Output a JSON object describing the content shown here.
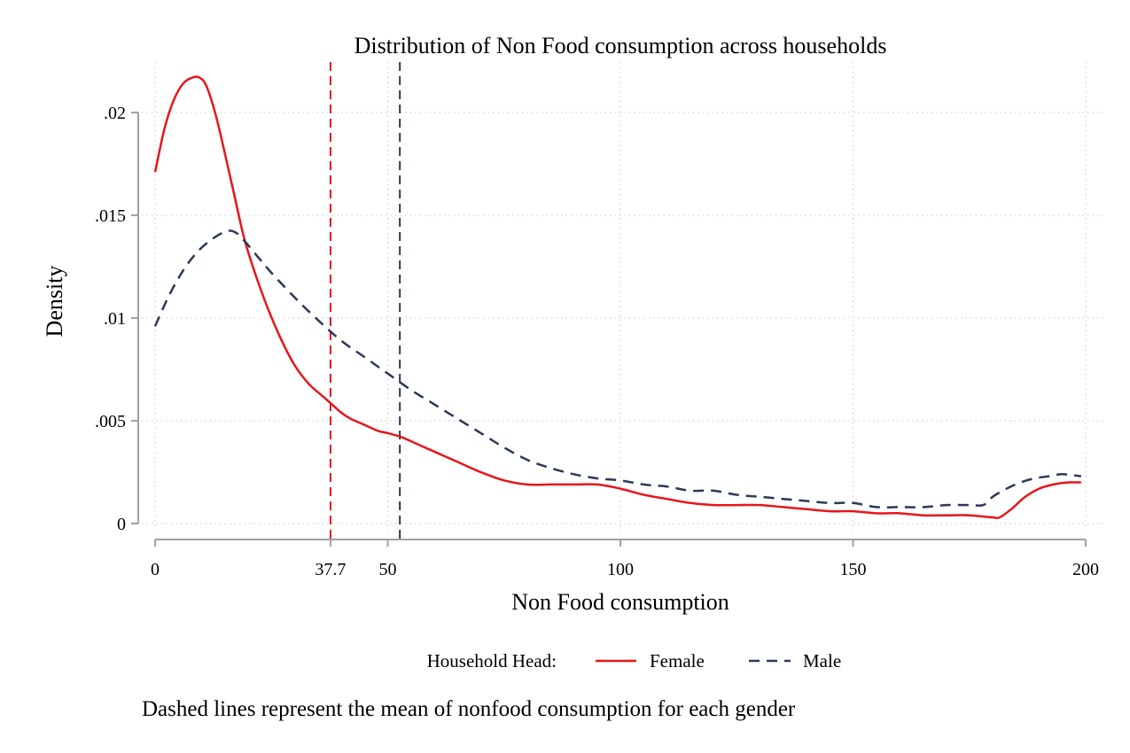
{
  "chart_data": {
    "type": "line",
    "title": "Distribution of Non Food consumption across households",
    "xlabel": "Non Food consumption",
    "ylabel": "Density",
    "xlim": [
      0,
      200
    ],
    "ylim": [
      0,
      0.022
    ],
    "grid": true,
    "x_ticks": [
      {
        "value": 0,
        "label": "0"
      },
      {
        "value": 37.7,
        "label": "37.7"
      },
      {
        "value": 50,
        "label": "50"
      },
      {
        "value": 100,
        "label": "100"
      },
      {
        "value": 150,
        "label": "150"
      },
      {
        "value": 200,
        "label": "200"
      }
    ],
    "x_grid": [
      0,
      50,
      100,
      150,
      200
    ],
    "y_ticks": [
      {
        "value": 0,
        "label": "0"
      },
      {
        "value": 0.005,
        "label": ".005"
      },
      {
        "value": 0.01,
        "label": ".01"
      },
      {
        "value": 0.015,
        "label": ".015"
      },
      {
        "value": 0.02,
        "label": ".02"
      }
    ],
    "legend": {
      "title": "Household Head:",
      "position": "bottom",
      "entries": [
        "Female",
        "Male"
      ]
    },
    "note": "Dashed lines represent the mean of nonfood consumption for each gender",
    "reference_lines": [
      {
        "x": 37.7,
        "color": "#e8151b",
        "dash": true
      },
      {
        "x": 52.6,
        "color": "#2b3a55",
        "dash": true
      }
    ],
    "series": [
      {
        "name": "Female",
        "color": "#e8151b",
        "dash": false,
        "x": [
          0,
          2,
          4,
          6,
          8,
          9.5,
          11,
          13,
          15,
          17,
          19,
          21,
          24,
          27,
          30,
          33,
          36,
          38,
          40,
          42,
          44,
          46,
          48,
          50,
          53,
          56,
          60,
          65,
          70,
          75,
          80,
          85,
          90,
          95,
          100,
          105,
          110,
          115,
          120,
          125,
          130,
          135,
          140,
          145,
          150,
          155,
          160,
          165,
          170,
          175,
          180,
          181.5,
          184,
          187,
          190,
          193,
          196,
          199
        ],
        "y": [
          0.0171,
          0.0192,
          0.0206,
          0.0214,
          0.0217,
          0.0217,
          0.0213,
          0.0199,
          0.018,
          0.016,
          0.014,
          0.0125,
          0.0106,
          0.009,
          0.0077,
          0.0068,
          0.0062,
          0.0058,
          0.0054,
          0.0051,
          0.0049,
          0.0047,
          0.0045,
          0.0044,
          0.0042,
          0.0039,
          0.0035,
          0.003,
          0.0025,
          0.0021,
          0.0019,
          0.0019,
          0.0019,
          0.0019,
          0.0017,
          0.0014,
          0.0012,
          0.001,
          0.0009,
          0.0009,
          0.0009,
          0.0008,
          0.0007,
          0.0006,
          0.0006,
          0.0005,
          0.0005,
          0.0004,
          0.0004,
          0.0004,
          0.0003,
          0.0003,
          0.0007,
          0.0013,
          0.0017,
          0.0019,
          0.002,
          0.002
        ]
      },
      {
        "name": "Male",
        "color": "#2b3a55",
        "dash": true,
        "x": [
          0,
          3,
          6,
          9,
          12,
          15,
          17,
          19,
          22,
          25,
          30,
          35,
          40,
          45,
          50,
          55,
          60,
          65,
          70,
          75,
          80,
          85,
          90,
          95,
          100,
          105,
          110,
          115,
          120,
          125,
          130,
          135,
          140,
          145,
          150,
          155,
          160,
          165,
          170,
          175,
          178,
          180,
          183,
          186,
          189,
          192,
          195,
          199
        ],
        "y": [
          0.0096,
          0.0111,
          0.0123,
          0.0132,
          0.0138,
          0.0142,
          0.0142,
          0.0138,
          0.013,
          0.0122,
          0.011,
          0.0099,
          0.0089,
          0.0081,
          0.0073,
          0.0065,
          0.0058,
          0.0051,
          0.0044,
          0.0037,
          0.0031,
          0.0027,
          0.0024,
          0.0022,
          0.0021,
          0.0019,
          0.0018,
          0.0016,
          0.0016,
          0.0014,
          0.0013,
          0.0012,
          0.0011,
          0.001,
          0.001,
          0.0008,
          0.0008,
          0.0008,
          0.0009,
          0.0009,
          0.0009,
          0.0013,
          0.0017,
          0.002,
          0.0022,
          0.0023,
          0.0024,
          0.0023
        ]
      }
    ]
  }
}
